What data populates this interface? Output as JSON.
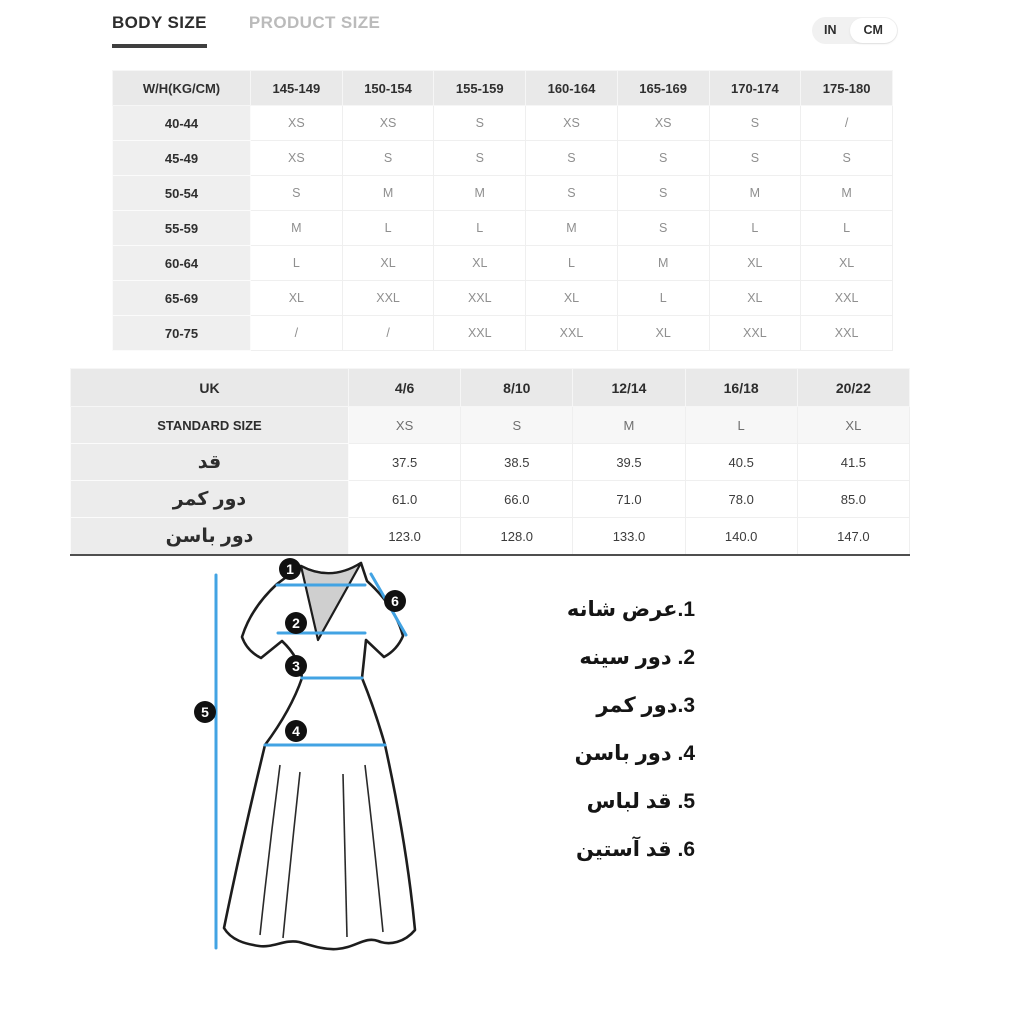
{
  "tabs": {
    "body_size": "BODY SIZE",
    "product_size": "PRODUCT SIZE"
  },
  "unit_toggle": {
    "in": "IN",
    "cm": "CM",
    "selected": "CM"
  },
  "body_size_table": {
    "corner_header": "W/H(KG/CM)",
    "columns": [
      "145-149",
      "150-154",
      "155-159",
      "160-164",
      "165-169",
      "170-174",
      "175-180"
    ],
    "rows": [
      {
        "label": "40-44",
        "values": [
          "XS",
          "XS",
          "S",
          "XS",
          "XS",
          "S",
          "/"
        ]
      },
      {
        "label": "45-49",
        "values": [
          "XS",
          "S",
          "S",
          "S",
          "S",
          "S",
          "S"
        ]
      },
      {
        "label": "50-54",
        "values": [
          "S",
          "M",
          "M",
          "S",
          "S",
          "M",
          "M"
        ]
      },
      {
        "label": "55-59",
        "values": [
          "M",
          "L",
          "L",
          "M",
          "S",
          "L",
          "L"
        ]
      },
      {
        "label": "60-64",
        "values": [
          "L",
          "XL",
          "XL",
          "L",
          "M",
          "XL",
          "XL"
        ]
      },
      {
        "label": "65-69",
        "values": [
          "XL",
          "XXL",
          "XXL",
          "XL",
          "L",
          "XL",
          "XXL"
        ]
      },
      {
        "label": "70-75",
        "values": [
          "/",
          "/",
          "XXL",
          "XXL",
          "XL",
          "XXL",
          "XXL"
        ]
      }
    ]
  },
  "uk_size_table": {
    "corner_header": "UK",
    "columns": [
      "4/6",
      "8/10",
      "12/14",
      "16/18",
      "20/22"
    ],
    "rows": [
      {
        "label": "STANDARD SIZE",
        "values": [
          "XS",
          "S",
          "M",
          "L",
          "XL"
        ]
      },
      {
        "label": "قد",
        "values": [
          "37.5",
          "38.5",
          "39.5",
          "40.5",
          "41.5"
        ]
      },
      {
        "label": "دور کمر",
        "values": [
          "61.0",
          "66.0",
          "71.0",
          "78.0",
          "85.0"
        ]
      },
      {
        "label": "دور باسن",
        "values": [
          "123.0",
          "128.0",
          "133.0",
          "140.0",
          "147.0"
        ]
      }
    ]
  },
  "measurement_legend": [
    "1.عرض شانه",
    "2. دور سینه",
    "3.دور کمر",
    "4. دور باسن",
    "5. قد لباس",
    "6. قد آستین"
  ],
  "diagram": {
    "badges": [
      "1",
      "2",
      "3",
      "4",
      "5",
      "6"
    ]
  },
  "colors": {
    "accent_blue": "#42a3e3",
    "active_tab_underline": "#3f3f3f",
    "table_header_bg": "#e9e9e9",
    "label_column_bg": "#efefef",
    "table_bottom_border": "#4f4f4f"
  }
}
